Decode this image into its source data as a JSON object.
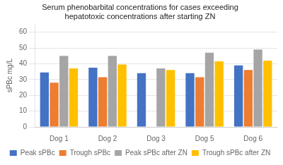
{
  "chart_data": {
    "type": "bar",
    "title": [
      "Serum phenobarbital concentrations for cases exceeding",
      "hepatotoxic concentrations after starting ZN"
    ],
    "y_label": "sPBc mg/L",
    "categories": [
      "Dog 1",
      "Dog 2",
      "Dog 3",
      "Dog 5",
      "Dog 6"
    ],
    "series": [
      {
        "name": "Peak sPBc",
        "color": "#4472C4",
        "values": [
          34.5,
          37.5,
          34.0,
          34.0,
          39.0
        ]
      },
      {
        "name": "Trough sPBc",
        "color": "#ED7D31",
        "values": [
          28.0,
          31.5,
          0,
          31.5,
          36.0
        ]
      },
      {
        "name": "Peak sPBc after ZN",
        "color": "#A5A5A5",
        "values": [
          45.0,
          45.0,
          37.0,
          47.0,
          49.0
        ]
      },
      {
        "name": "Trough sPBc after ZN",
        "color": "#FFC000",
        "values": [
          37.0,
          39.5,
          36.0,
          41.5,
          42.0
        ]
      }
    ],
    "ylim": [
      0,
      65
    ],
    "yticks": [
      0,
      10,
      20,
      30,
      40,
      50,
      60
    ],
    "grid": true,
    "legend": "bottom"
  }
}
